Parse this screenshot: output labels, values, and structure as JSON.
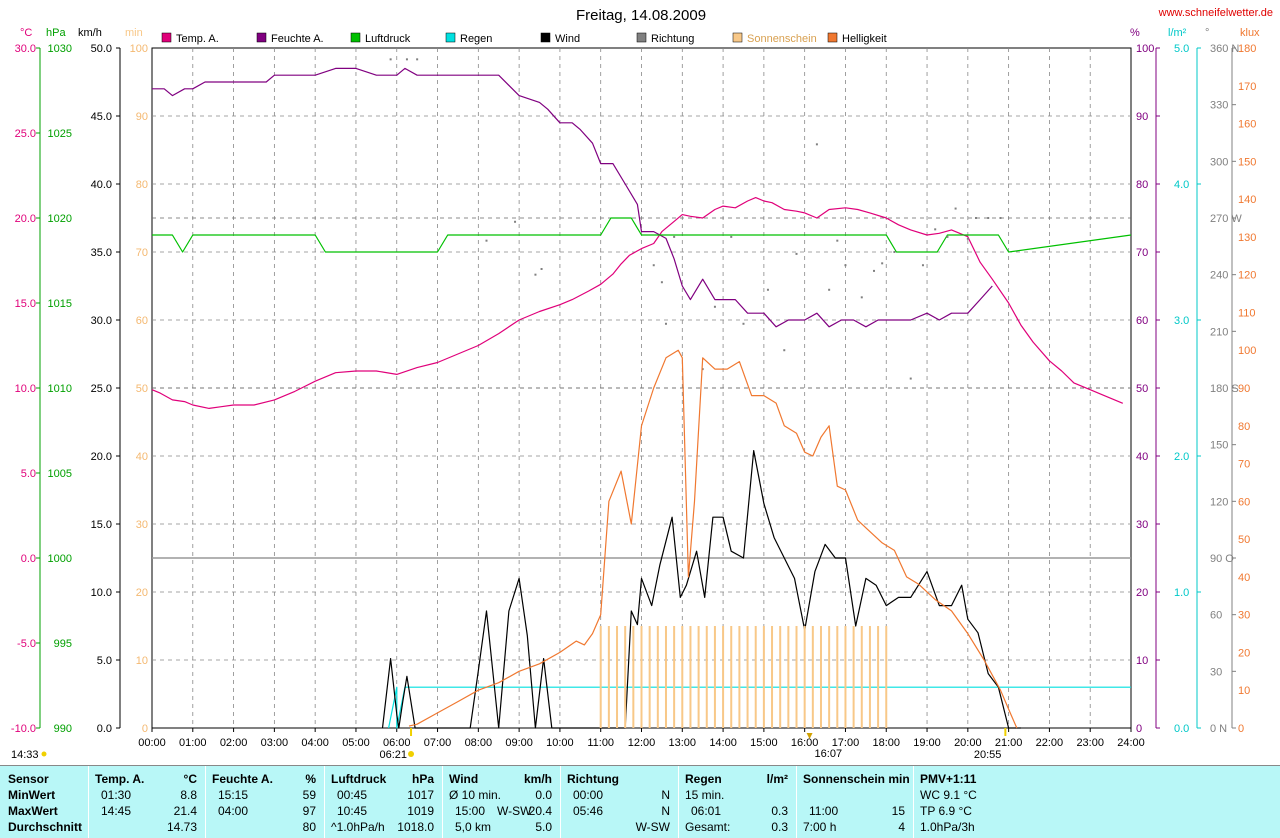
{
  "title": "Freitag, 14.08.2009",
  "source": "www.schneifelwetter.de",
  "colors": {
    "temp": "#e0007a",
    "humidity": "#800080",
    "pressure": "#00c000",
    "rain": "#00e0e0",
    "wind": "#000000",
    "direction": "#808080",
    "sunshine": "#f8c888",
    "brightness": "#f07830"
  },
  "legend": [
    {
      "label": "Temp. A.",
      "color": "#e0007a"
    },
    {
      "label": "Feuchte A.",
      "color": "#800080"
    },
    {
      "label": "Luftdruck",
      "color": "#00c000"
    },
    {
      "label": "Regen",
      "color": "#00e0e0"
    },
    {
      "label": "Wind",
      "color": "#000000"
    },
    {
      "label": "Richtung",
      "color": "#808080"
    },
    {
      "label": "Sonnenschein",
      "color": "#f8c888"
    },
    {
      "label": "Helligkeit",
      "color": "#f07830"
    }
  ],
  "chart_data": {
    "type": "line",
    "x_unit": "hour of day",
    "xlim": [
      0,
      24
    ],
    "x_ticks": [
      "00:00",
      "01:00",
      "02:00",
      "03:00",
      "04:00",
      "05:00",
      "06:00",
      "07:00",
      "08:00",
      "09:00",
      "10:00",
      "11:00",
      "12:00",
      "13:00",
      "14:00",
      "15:00",
      "16:00",
      "17:00",
      "18:00",
      "19:00",
      "20:00",
      "21:00",
      "22:00",
      "23:00",
      "24:00"
    ],
    "axes": {
      "temp": {
        "unit": "°C",
        "min": -10,
        "max": 30,
        "ticks": [
          "30.0",
          "25.0",
          "20.0",
          "15.0",
          "10.0",
          "5.0",
          "0.0",
          "-5.0",
          "-10.0"
        ]
      },
      "pressure": {
        "unit": "hPa",
        "min": 990,
        "max": 1030,
        "ticks": [
          "1030",
          "1025",
          "1020",
          "1015",
          "1010",
          "1005",
          "1000",
          "995",
          "990"
        ]
      },
      "wind": {
        "unit": "km/h",
        "min": 0,
        "max": 50,
        "ticks": [
          "50.0",
          "45.0",
          "40.0",
          "35.0",
          "30.0",
          "25.0",
          "20.0",
          "15.0",
          "10.0",
          "5.0",
          "0.0"
        ]
      },
      "sunmin": {
        "unit": "min",
        "min": 0,
        "max": 100,
        "ticks": [
          "100",
          "90",
          "80",
          "70",
          "60",
          "50",
          "40",
          "30",
          "20",
          "10",
          "0"
        ]
      },
      "humidity": {
        "unit": "%",
        "min": 0,
        "max": 100,
        "ticks": [
          "100",
          "90",
          "80",
          "70",
          "60",
          "50",
          "40",
          "30",
          "20",
          "10",
          "0"
        ]
      },
      "rain": {
        "unit": "l/m²",
        "min": 0,
        "max": 5,
        "ticks": [
          "5.0",
          "4.0",
          "3.0",
          "2.0",
          "1.0",
          "0.0"
        ]
      },
      "direction": {
        "unit": "°",
        "min": 0,
        "max": 360,
        "ticks": [
          "360 N",
          "330",
          "300",
          "270 W",
          "240",
          "210",
          "180 S",
          "150",
          "120",
          "90 O",
          "60",
          "30",
          "0 N"
        ]
      },
      "brightness": {
        "unit": "klux",
        "min": 0,
        "max": 180,
        "ticks": [
          "180",
          "170",
          "160",
          "150",
          "140",
          "130",
          "120",
          "110",
          "100",
          "90",
          "80",
          "70",
          "60",
          "50",
          "40",
          "30",
          "20",
          "10",
          "0"
        ]
      }
    },
    "series": [
      {
        "name": "Temp. A.",
        "axis": "temp",
        "x": [
          0,
          0.2,
          0.5,
          0.8,
          1.0,
          1.4,
          1.7,
          2.0,
          2.5,
          3.0,
          3.5,
          4.0,
          4.5,
          5.0,
          5.5,
          6.0,
          6.5,
          7.0,
          7.5,
          8.0,
          8.5,
          9.0,
          9.5,
          10.0,
          10.3,
          10.7,
          11.0,
          11.3,
          11.5,
          11.7,
          12.0,
          12.3,
          12.5,
          12.8,
          13.0,
          13.2,
          13.5,
          13.8,
          14.0,
          14.3,
          14.6,
          14.8,
          15.0,
          15.2,
          15.5,
          15.8,
          16.0,
          16.3,
          16.6,
          17.0,
          17.3,
          17.6,
          18.0,
          18.3,
          18.6,
          19.0,
          19.3,
          19.6,
          20.0,
          20.3,
          20.6,
          21.0,
          21.3,
          21.6,
          22.0,
          22.3,
          22.6,
          23.0,
          23.3,
          23.6,
          23.8
        ],
        "y": [
          9.9,
          9.7,
          9.3,
          9.2,
          9.0,
          8.8,
          8.9,
          9.0,
          9.0,
          9.3,
          9.8,
          10.4,
          10.9,
          11.0,
          11.0,
          10.8,
          11.2,
          11.5,
          12.0,
          12.5,
          13.2,
          14.0,
          14.5,
          14.9,
          15.2,
          15.7,
          16.1,
          16.7,
          17.3,
          17.8,
          18.2,
          18.5,
          19.2,
          19.8,
          20.2,
          20.1,
          20.0,
          20.5,
          20.7,
          20.6,
          21.0,
          21.2,
          21.0,
          20.9,
          20.5,
          20.4,
          20.3,
          20.0,
          20.5,
          20.6,
          20.5,
          20.3,
          20.0,
          19.6,
          19.3,
          19.0,
          19.1,
          19.3,
          18.9,
          17.4,
          16.4,
          15.0,
          13.7,
          12.7,
          11.6,
          11.0,
          10.3,
          9.9,
          9.6,
          9.3,
          9.1
        ]
      },
      {
        "name": "Feuchte A.",
        "axis": "humidity",
        "x": [
          0,
          0.3,
          0.5,
          0.8,
          1.0,
          1.3,
          1.5,
          2.0,
          2.5,
          2.8,
          3.0,
          3.5,
          4.0,
          4.5,
          5.0,
          5.5,
          6.0,
          6.2,
          6.5,
          7.0,
          7.5,
          8.0,
          8.5,
          9.0,
          9.5,
          9.7,
          10.0,
          10.3,
          10.5,
          10.8,
          11.0,
          11.3,
          11.6,
          11.9,
          12.0,
          12.3,
          12.6,
          12.8,
          13.0,
          13.2,
          13.5,
          13.8,
          14.0,
          14.3,
          14.6,
          15.0,
          15.3,
          15.6,
          16.0,
          16.3,
          16.6,
          16.9,
          17.2,
          17.5,
          17.8,
          18.0,
          18.3,
          18.6,
          19.0,
          19.3,
          19.6,
          20.0,
          20.3,
          20.6
        ],
        "y": [
          94,
          94,
          93,
          94,
          94,
          95,
          95,
          95,
          95,
          95,
          96,
          96,
          96,
          97,
          97,
          96,
          96,
          97,
          96,
          96,
          96,
          96,
          96,
          93,
          92,
          91,
          89,
          89,
          88,
          86,
          83,
          83,
          80,
          77,
          73,
          73,
          72,
          69,
          65,
          63,
          66,
          63,
          63,
          63,
          61,
          61,
          59,
          60,
          60,
          61,
          59,
          60,
          60,
          59,
          60,
          60,
          60,
          60,
          61,
          60,
          61,
          61,
          63,
          65
        ]
      },
      {
        "name": "Luftdruck",
        "axis": "pressure",
        "x": [
          0,
          0.5,
          0.75,
          1.0,
          4.0,
          4.25,
          7.0,
          7.25,
          11.0,
          11.25,
          11.75,
          12.0,
          18.0,
          18.25,
          19.25,
          19.5,
          20.75,
          21.0,
          24.0
        ],
        "y": [
          1019,
          1019,
          1018,
          1019,
          1019,
          1018,
          1018,
          1019,
          1019,
          1020,
          1020,
          1019,
          1019,
          1018,
          1018,
          1019,
          1019,
          1018,
          1019
        ]
      },
      {
        "name": "Regen",
        "axis": "rain",
        "x": [
          5.8,
          6.0,
          6.0,
          6.2,
          24.0
        ],
        "y": [
          0,
          0.3,
          0,
          0.3,
          0.3
        ]
      },
      {
        "name": "Wind",
        "axis": "wind",
        "x": [
          5.65,
          5.85,
          6.0,
          6.05,
          6.15,
          6.25,
          6.45,
          7.8,
          8.0,
          8.2,
          8.5,
          8.75,
          9.0,
          9.2,
          9.4,
          9.6,
          9.8,
          11.6,
          11.75,
          11.9,
          12.0,
          12.25,
          12.45,
          12.75,
          12.95,
          13.1,
          13.35,
          13.55,
          13.75,
          14.0,
          14.2,
          14.5,
          14.75,
          15.0,
          15.25,
          15.5,
          15.75,
          16.0,
          16.25,
          16.5,
          16.75,
          17.0,
          17.25,
          17.5,
          17.75,
          18.0,
          18.3,
          18.6,
          19.0,
          19.3,
          19.6,
          19.85,
          20.0,
          20.25,
          20.5,
          20.75,
          21.0,
          21.2,
          21.3
        ],
        "y": [
          0.0,
          5.1,
          1.0,
          0.0,
          2.0,
          3.8,
          0.0,
          0.0,
          4.2,
          8.6,
          0.0,
          8.6,
          11.0,
          6.8,
          0.0,
          5.1,
          0.0,
          0.0,
          8.6,
          7.6,
          11.0,
          9.0,
          12.0,
          15.5,
          9.6,
          10.5,
          13.0,
          9.6,
          15.5,
          15.5,
          13.0,
          12.5,
          20.4,
          16.5,
          14.0,
          12.5,
          11.0,
          7.2,
          11.5,
          13.5,
          12.5,
          12.5,
          7.5,
          11.0,
          10.5,
          9.0,
          9.6,
          9.6,
          11.5,
          9.0,
          9.0,
          10.5,
          8.0,
          7.0,
          4.0,
          3.0,
          0.0,
          0.0,
          0.0
        ]
      },
      {
        "name": "Richtung",
        "axis": "direction",
        "style": "dots",
        "x": [
          5.85,
          6.25,
          6.5,
          8.2,
          8.9,
          9.4,
          9.55,
          12.3,
          12.5,
          12.6,
          12.8,
          13.5,
          13.8,
          14.2,
          14.5,
          15.1,
          15.5,
          15.8,
          16.3,
          16.6,
          16.8,
          17.0,
          17.4,
          17.7,
          17.9,
          18.2,
          18.6,
          18.9,
          19.2,
          19.5,
          19.7,
          20.0,
          20.2,
          20.5,
          20.8
        ],
        "y": [
          354,
          354,
          354,
          258,
          268,
          240,
          243,
          245,
          236,
          214,
          260,
          190,
          223,
          260,
          214,
          232,
          200,
          251,
          309,
          232,
          258,
          245,
          228,
          242,
          246,
          252,
          185,
          245,
          264,
          260,
          275,
          259,
          270,
          270,
          270
        ]
      },
      {
        "name": "Sonnenschein",
        "axis": "sunmin",
        "style": "bars",
        "x": [
          11.0,
          11.2,
          11.4,
          11.6,
          11.8,
          12.0,
          12.2,
          12.4,
          12.6,
          12.8,
          13.0,
          13.2,
          13.4,
          13.6,
          13.8,
          14.0,
          14.2,
          14.4,
          14.6,
          14.8,
          15.0,
          15.2,
          15.4,
          15.6,
          15.8,
          16.0,
          16.2,
          16.4,
          16.6,
          16.8,
          17.0,
          17.2,
          17.4,
          17.6,
          17.8,
          18.0
        ],
        "y": [
          15,
          15,
          15,
          15,
          15,
          15,
          15,
          15,
          15,
          15,
          15,
          15,
          15,
          15,
          15,
          15,
          15,
          15,
          15,
          15,
          15,
          15,
          15,
          15,
          15,
          15,
          15,
          15,
          15,
          15,
          15,
          15,
          15,
          15,
          15,
          15
        ]
      },
      {
        "name": "Helligkeit",
        "axis": "brightness",
        "x": [
          6.3,
          6.5,
          7.0,
          7.5,
          8.0,
          8.5,
          9.0,
          9.5,
          10.0,
          10.4,
          10.6,
          10.8,
          11.0,
          11.2,
          11.5,
          11.75,
          12.0,
          12.3,
          12.6,
          12.9,
          13.0,
          13.15,
          13.3,
          13.5,
          13.8,
          14.1,
          14.4,
          14.7,
          15.0,
          15.3,
          15.5,
          15.8,
          16.0,
          16.2,
          16.4,
          16.6,
          16.8,
          17.0,
          17.3,
          17.6,
          17.9,
          18.2,
          18.5,
          18.8,
          19.2,
          19.6,
          20.0,
          20.4,
          20.8,
          21.0,
          21.2
        ],
        "y": [
          0.5,
          1.0,
          4.0,
          7.0,
          10.0,
          12.0,
          15.0,
          17.0,
          20.0,
          23.0,
          22.0,
          25.0,
          30.0,
          60.0,
          68.0,
          54.0,
          80.0,
          90.0,
          98.0,
          100.0,
          98.0,
          40.0,
          60.0,
          98.0,
          95.0,
          95.0,
          97.0,
          88.0,
          88.0,
          86.0,
          80.0,
          78.0,
          73.0,
          72.0,
          77.0,
          80.0,
          64.0,
          63.0,
          55.0,
          52.0,
          49.0,
          47.0,
          40.0,
          38.0,
          34.0,
          31.0,
          25.0,
          18.0,
          10.0,
          5.0,
          0.0
        ]
      }
    ],
    "annotations": [
      {
        "type": "sunrise",
        "x": 6.35,
        "label": "06:21"
      },
      {
        "type": "sunset",
        "x": 20.92,
        "label": "20:55"
      },
      {
        "type": "sun_max",
        "x": 16.12,
        "label": "16:07"
      },
      {
        "type": "sun_duration",
        "label": "14:33"
      }
    ]
  },
  "stats": {
    "sensor": {
      "header": "Sensor",
      "rows": [
        "MinWert",
        "MaxWert",
        "Durchschnitt"
      ]
    },
    "temp": {
      "header": "Temp. A.",
      "unit": "°C",
      "min_time": "01:30",
      "min_val": "8.8",
      "max_time": "14:45",
      "max_val": "21.4",
      "avg_val": "14.73"
    },
    "humidity": {
      "header": "Feuchte A.",
      "unit": "%",
      "min_time": "15:15",
      "min_val": "59",
      "max_time": "04:00",
      "max_val": "97",
      "avg_val": "80"
    },
    "pressure": {
      "header": "Luftdruck",
      "unit": "hPa",
      "min_time": "00:45",
      "min_val": "1017",
      "max_time": "10:45",
      "max_val": "1019",
      "avg_label": "^1.0hPa/h",
      "avg_val": "1018.0"
    },
    "wind": {
      "header": "Wind",
      "unit": "km/h",
      "r1_label": "Ø 10 min.",
      "r1_val": "0.0",
      "r2_time": "15:00",
      "r2_dir": "W-SW",
      "r2_val": "20.4",
      "r3_label": "5,0 km",
      "r3_val": "5.0"
    },
    "direction": {
      "header": "Richtung",
      "r1_time": "00:00",
      "r1_val": "N",
      "r2_time": "05:46",
      "r2_val": "N",
      "r3_val": "W-SW"
    },
    "rain": {
      "header": "Regen",
      "unit": "l/m²",
      "r1_label": "15 min.",
      "r2_time": "06:01",
      "r2_val": "0.3",
      "r3_label": "Gesamt:",
      "r3_val": "0.3"
    },
    "sunshine": {
      "header": "Sonnenschein min",
      "r2_time": "11:00",
      "r2_val": "15",
      "r3_label": "7:00 h",
      "r3_val": "4"
    },
    "pmv": {
      "header": "PMV+1:11",
      "r1": "WC 9.1 °C",
      "r2": "TP 6.9 °C",
      "r3": "1.0hPa/3h"
    }
  }
}
